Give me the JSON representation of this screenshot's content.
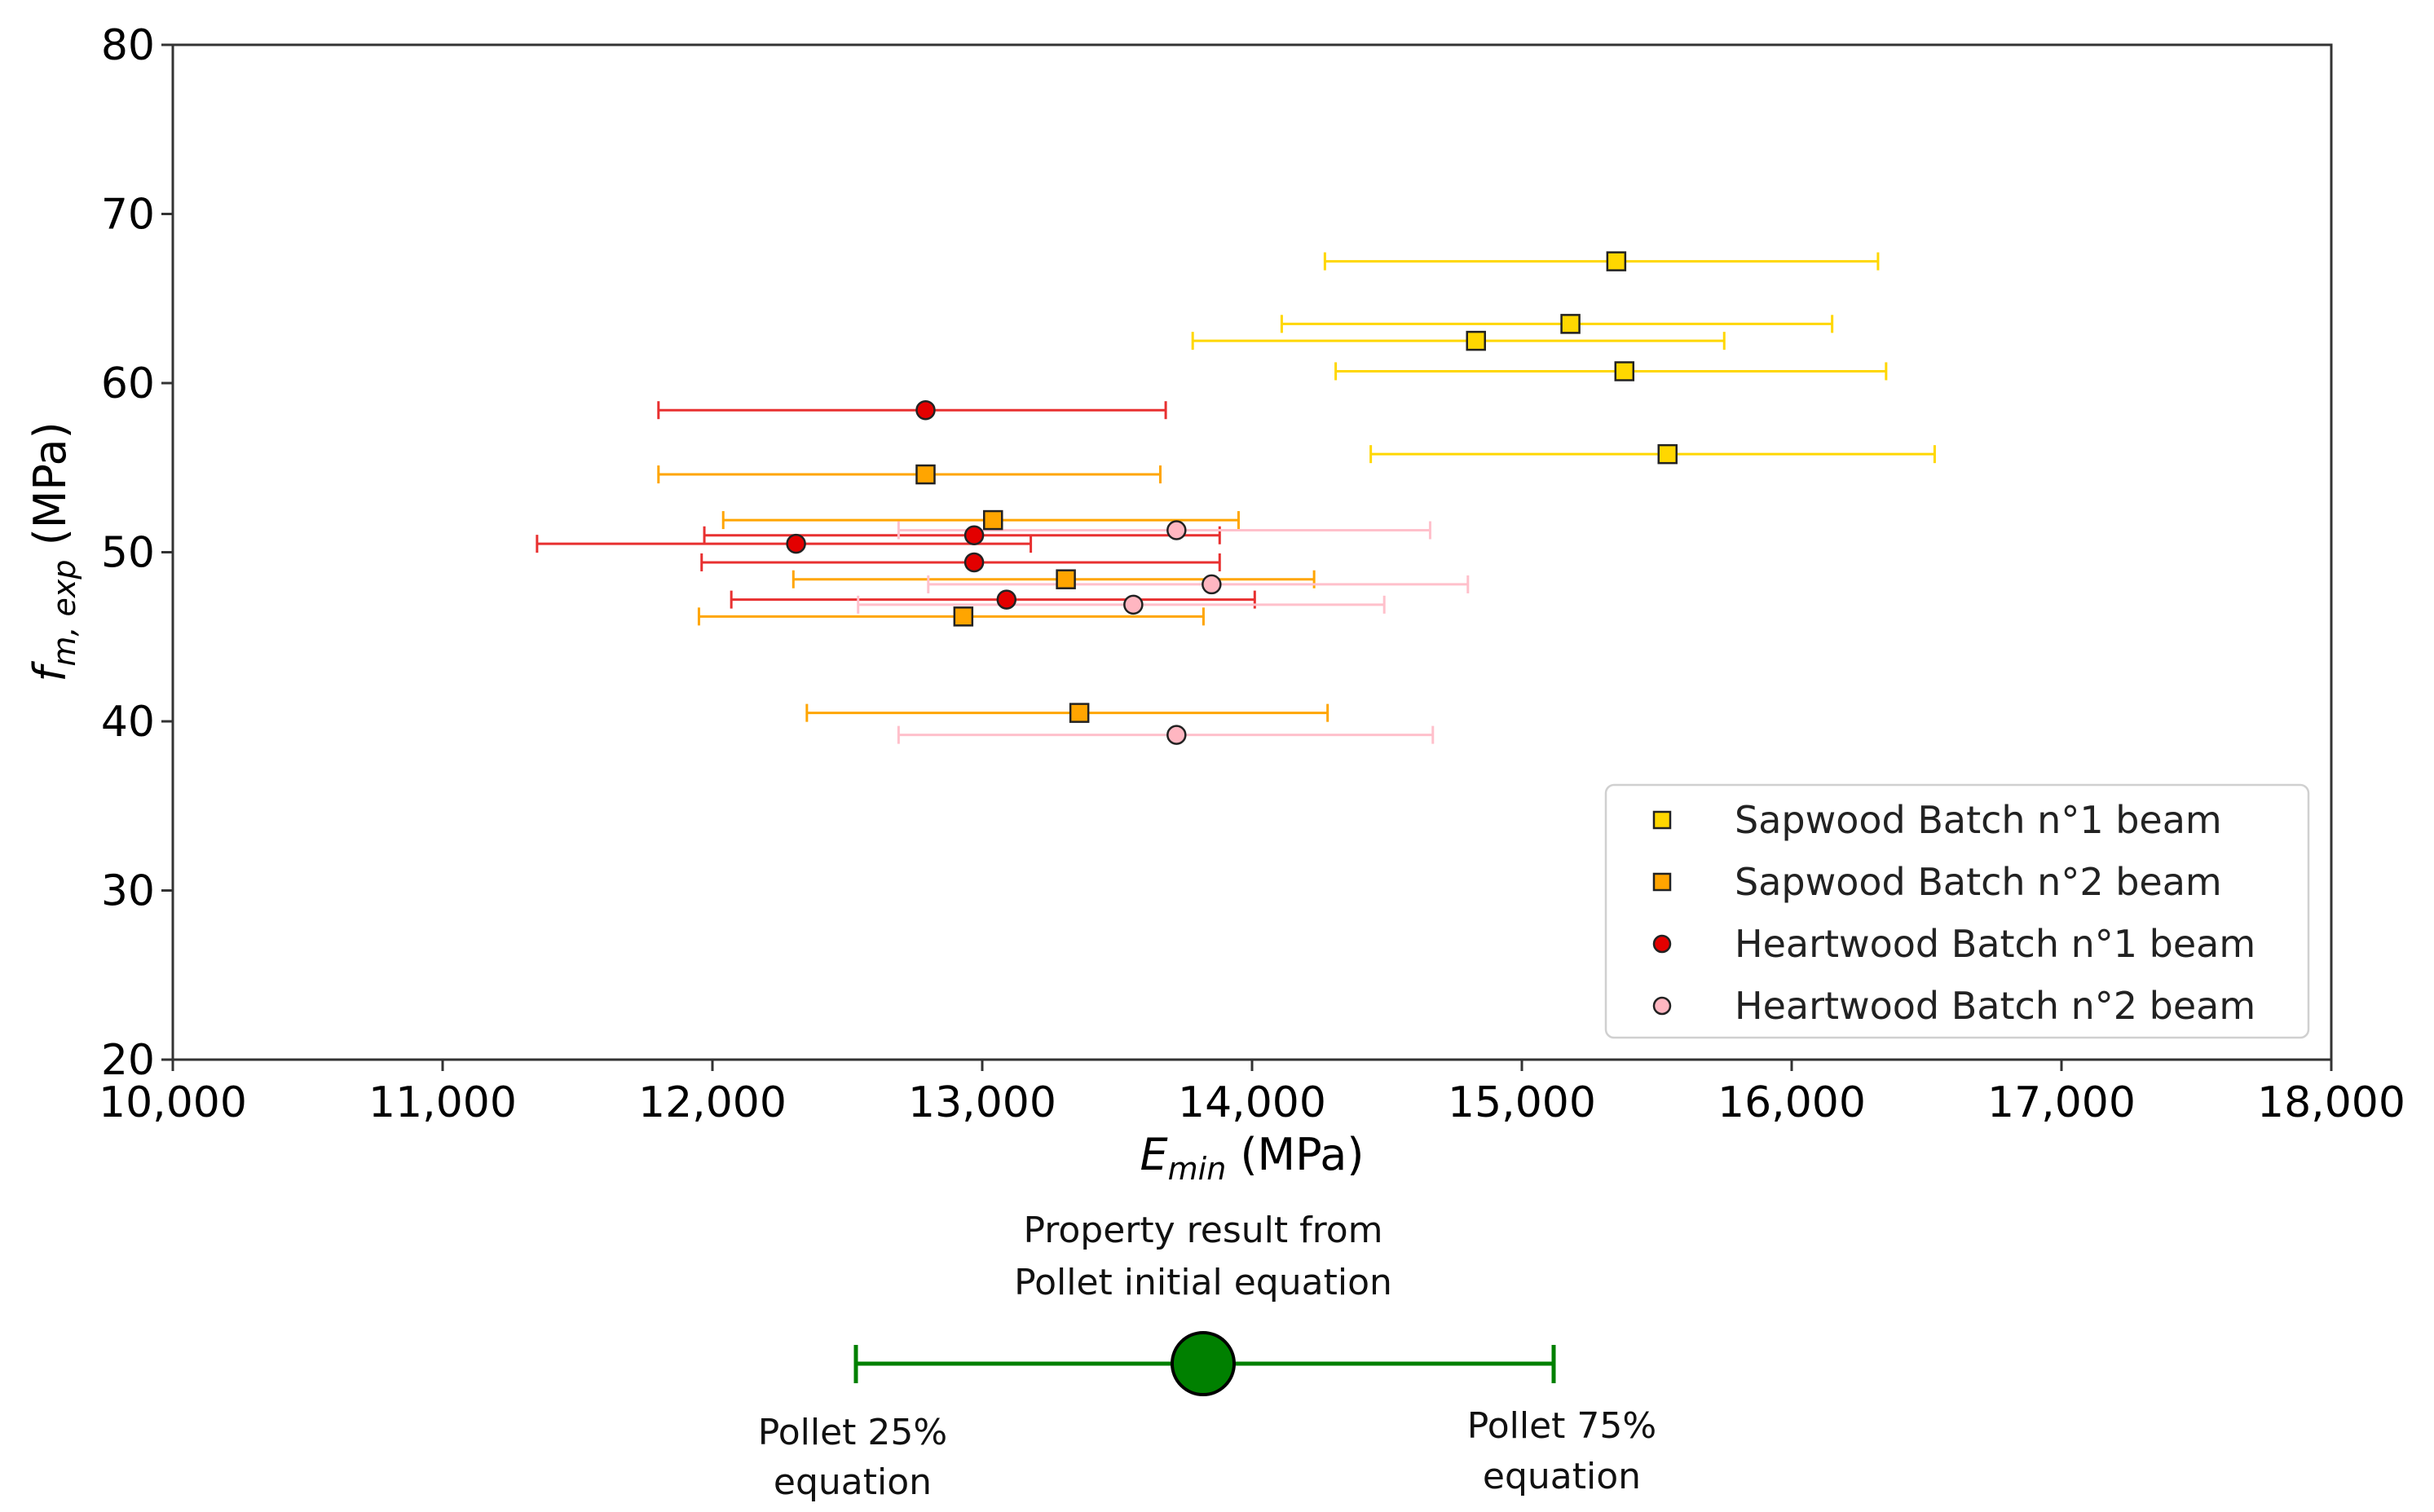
{
  "chart_data": {
    "type": "scatter",
    "xlabel": {
      "main": "E",
      "sub": "min",
      "unit": " (MPa)"
    },
    "ylabel": {
      "main": "f",
      "sub": "m, exp",
      "unit": " (MPa)"
    },
    "xlim": [
      10000,
      18000
    ],
    "ylim": [
      20,
      80
    ],
    "xticks": [
      10000,
      11000,
      12000,
      13000,
      14000,
      15000,
      16000,
      17000,
      18000
    ],
    "xtick_labels": [
      "10,000",
      "11,000",
      "12,000",
      "13,000",
      "14,000",
      "15,000",
      "16,000",
      "17,000",
      "18,000"
    ],
    "yticks": [
      20,
      30,
      40,
      50,
      60,
      70,
      80
    ],
    "ytick_labels": [
      "20",
      "30",
      "40",
      "50",
      "60",
      "70",
      "80"
    ],
    "grid": false,
    "legend_position": "lower-right",
    "series": [
      {
        "name": "Sapwood Batch n°1 beam",
        "marker": "square",
        "color": "#FFD700",
        "error_color": "#FFD700",
        "points": [
          {
            "x": 15350,
            "y": 67.2,
            "xerr_low": 14270,
            "xerr_high": 16320
          },
          {
            "x": 15180,
            "y": 63.5,
            "xerr_low": 14110,
            "xerr_high": 16150
          },
          {
            "x": 14830,
            "y": 62.5,
            "xerr_low": 13780,
            "xerr_high": 15750
          },
          {
            "x": 15380,
            "y": 60.7,
            "xerr_low": 14310,
            "xerr_high": 16350
          },
          {
            "x": 15540,
            "y": 55.8,
            "xerr_low": 14440,
            "xerr_high": 16530
          }
        ]
      },
      {
        "name": "Sapwood Batch n°2 beam",
        "marker": "square",
        "color": "#FFA500",
        "error_color": "#FFA500",
        "points": [
          {
            "x": 12790,
            "y": 54.6,
            "xerr_low": 11800,
            "xerr_high": 13660
          },
          {
            "x": 13040,
            "y": 51.9,
            "xerr_low": 12040,
            "xerr_high": 13950
          },
          {
            "x": 13310,
            "y": 48.4,
            "xerr_low": 12300,
            "xerr_high": 14230
          },
          {
            "x": 12930,
            "y": 46.2,
            "xerr_low": 11950,
            "xerr_high": 13820
          },
          {
            "x": 13360,
            "y": 40.5,
            "xerr_low": 12350,
            "xerr_high": 14280
          }
        ]
      },
      {
        "name": "Heartwood Batch n°1 beam",
        "marker": "circle",
        "color": "#E30000",
        "error_color": "#E83030",
        "points": [
          {
            "x": 12790,
            "y": 58.4,
            "xerr_low": 11800,
            "xerr_high": 13680
          },
          {
            "x": 12310,
            "y": 50.5,
            "xerr_low": 11350,
            "xerr_high": 13180
          },
          {
            "x": 12970,
            "y": 51.0,
            "xerr_low": 11970,
            "xerr_high": 13880
          },
          {
            "x": 12970,
            "y": 49.4,
            "xerr_low": 11960,
            "xerr_high": 13880
          },
          {
            "x": 13090,
            "y": 47.2,
            "xerr_low": 12070,
            "xerr_high": 14010
          }
        ]
      },
      {
        "name": "Heartwood Batch n°2 beam",
        "marker": "circle",
        "color": "#FFB6C1",
        "error_color": "#FFC0CB",
        "points": [
          {
            "x": 13720,
            "y": 51.3,
            "xerr_low": 12690,
            "xerr_high": 14660
          },
          {
            "x": 13850,
            "y": 48.1,
            "xerr_low": 12800,
            "xerr_high": 14800
          },
          {
            "x": 13560,
            "y": 46.9,
            "xerr_low": 12540,
            "xerr_high": 14490
          },
          {
            "x": 13720,
            "y": 39.2,
            "xerr_low": 12690,
            "xerr_high": 14670
          }
        ]
      }
    ],
    "key_annotation": {
      "center_label_line1": "Property result from",
      "center_label_line2": "Pollet initial equation",
      "left_label_line1": "Pollet 25%",
      "left_label_line2": "equation",
      "right_label_line1": "Pollet 75%",
      "right_label_line2": "equation",
      "color": "#008000"
    }
  }
}
